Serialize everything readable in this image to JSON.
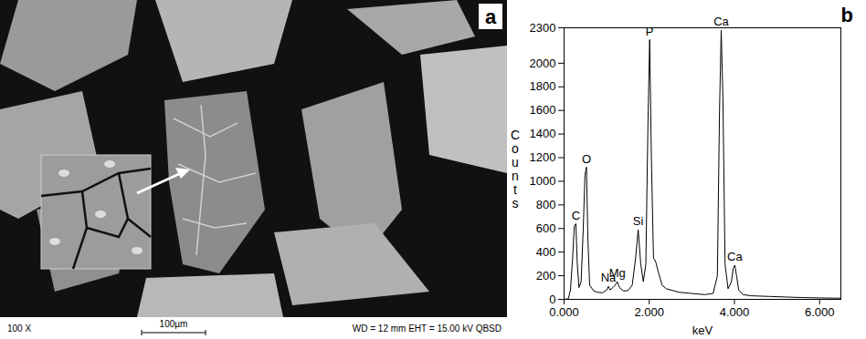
{
  "panel_a": {
    "label": "a",
    "magnification": "100 X",
    "scale_bar": "100µm",
    "info": "WD = 12 mm EHT = 15.00 kV QBSD"
  },
  "chart_data": {
    "type": "line",
    "panel": "b",
    "x_label": "keV",
    "y_label": "Counts",
    "x": [
      0.0,
      0.1,
      0.15,
      0.2,
      0.24,
      0.277,
      0.31,
      0.35,
      0.4,
      0.45,
      0.49,
      0.525,
      0.56,
      0.6,
      0.7,
      0.8,
      0.9,
      1.0,
      1.04,
      1.08,
      1.15,
      1.2,
      1.25,
      1.3,
      1.4,
      1.5,
      1.6,
      1.68,
      1.74,
      1.8,
      1.86,
      1.92,
      1.97,
      2.01,
      2.05,
      2.1,
      2.15,
      2.2,
      2.3,
      2.4,
      2.5,
      2.7,
      3.0,
      3.3,
      3.5,
      3.6,
      3.65,
      3.69,
      3.73,
      3.78,
      3.85,
      3.93,
      3.97,
      4.01,
      4.05,
      4.1,
      4.2,
      4.4,
      4.8,
      5.2,
      5.6,
      6.0,
      6.4,
      6.5
    ],
    "values": [
      0,
      5,
      80,
      350,
      620,
      640,
      300,
      100,
      150,
      600,
      1050,
      1120,
      500,
      120,
      70,
      60,
      55,
      80,
      110,
      80,
      100,
      120,
      150,
      100,
      70,
      75,
      120,
      350,
      590,
      300,
      150,
      300,
      1500,
      2200,
      1200,
      350,
      320,
      250,
      120,
      90,
      80,
      60,
      50,
      40,
      50,
      200,
      1600,
      2280,
      1700,
      300,
      90,
      150,
      260,
      290,
      200,
      80,
      40,
      30,
      25,
      20,
      15,
      12,
      10,
      10
    ],
    "color": "#000000",
    "xlim": [
      0,
      6.5
    ],
    "xticks": [
      {
        "value": 0,
        "label": "0.000"
      },
      {
        "value": 2,
        "label": "2.000"
      },
      {
        "value": 4,
        "label": "4.000"
      },
      {
        "value": 6,
        "label": "6.000"
      }
    ],
    "ylim": [
      0,
      2300
    ],
    "yticks": [
      0,
      200,
      400,
      600,
      800,
      1000,
      1200,
      1400,
      1600,
      1800,
      2000,
      2300
    ],
    "grid": false,
    "annotations": [
      {
        "text": "C",
        "x": 0.277,
        "y": 640
      },
      {
        "text": "O",
        "x": 0.525,
        "y": 1120
      },
      {
        "text": "Na",
        "x": 1.04,
        "y": 110
      },
      {
        "text": "Mg",
        "x": 1.25,
        "y": 150
      },
      {
        "text": "Si",
        "x": 1.74,
        "y": 590
      },
      {
        "text": "P",
        "x": 2.01,
        "y": 2200
      },
      {
        "text": "Ca",
        "x": 3.69,
        "y": 2280
      },
      {
        "text": "Ca",
        "x": 4.01,
        "y": 290
      }
    ]
  }
}
